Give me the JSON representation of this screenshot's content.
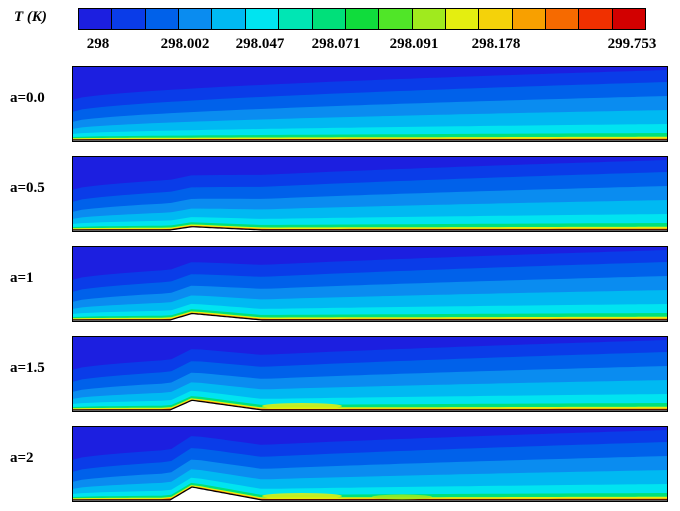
{
  "legend": {
    "title": "T (K)",
    "colors": [
      "#1c1fe0",
      "#0a3ce8",
      "#0061ea",
      "#0a8cf0",
      "#00b9f2",
      "#00e4f0",
      "#00e6b4",
      "#00e07a",
      "#10dc3c",
      "#50e628",
      "#a0ea1e",
      "#e4ee10",
      "#f4d20a",
      "#f8a000",
      "#f66a00",
      "#f03000",
      "#d20000"
    ],
    "tick_labels": [
      "298",
      "298.002",
      "298.047",
      "298.071",
      "298.091",
      "298.178",
      "299.753"
    ]
  },
  "cases": [
    {
      "label": "a=0.0",
      "amplitude": 0.0
    },
    {
      "label": "a=0.5",
      "amplitude": 0.5
    },
    {
      "label": "a=1",
      "amplitude": 1.0
    },
    {
      "label": "a=1.5",
      "amplitude": 1.5
    },
    {
      "label": "a=2",
      "amplitude": 2.0
    }
  ]
}
